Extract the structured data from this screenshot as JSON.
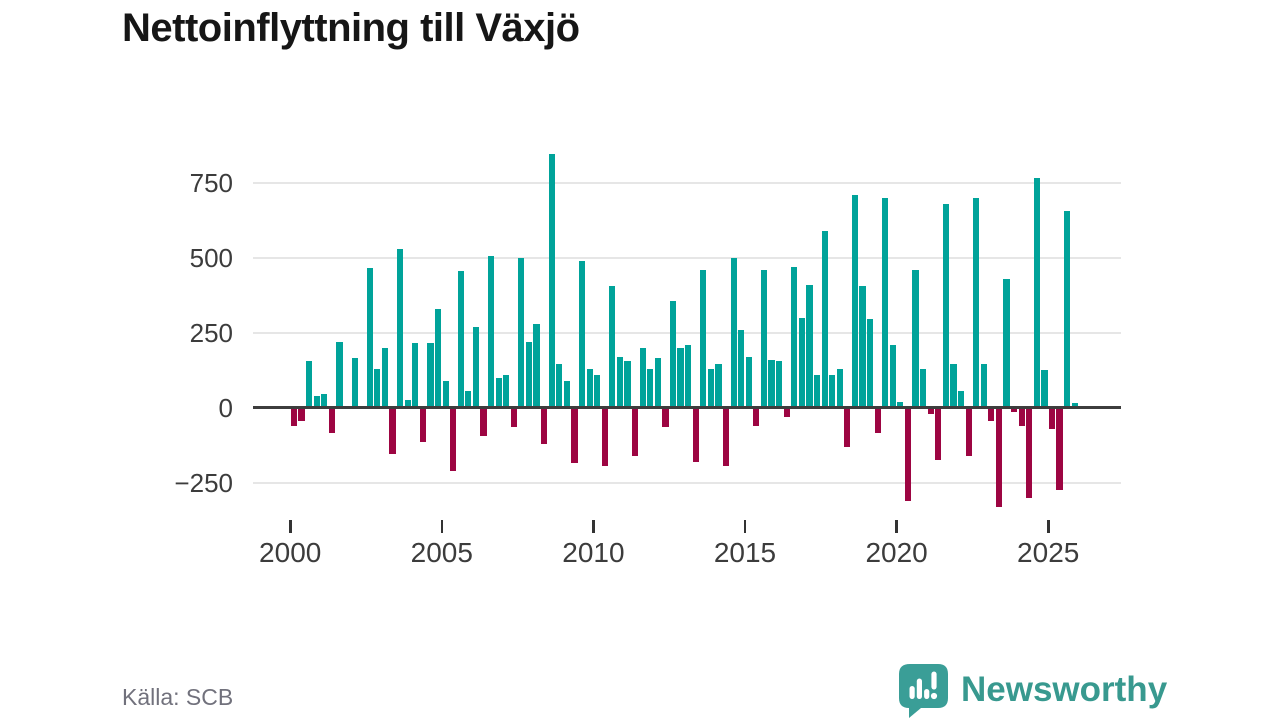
{
  "source": {
    "label": "Källa: SCB"
  },
  "brand": {
    "name": "Newsworthy",
    "color": "#38998f",
    "icon": "newsworthy-speech-bubble-chart-icon"
  },
  "chart_data": {
    "type": "bar",
    "title": "Nettoinflyttning till Växjö",
    "frequency": "quarterly",
    "start_year": 2000,
    "start_quarter": 1,
    "x_tick_labels": [
      "2000",
      "2005",
      "2010",
      "2015",
      "2020",
      "2025"
    ],
    "y_ticks": [
      750,
      500,
      250,
      0,
      -250
    ],
    "ylim": [
      -350,
      870
    ],
    "grid": "horizontal",
    "legend": "none",
    "positive_color": "#00a39a",
    "negative_color": "#9d0542",
    "axis_color": "#3d3d3d",
    "gridline_color": "#e6e6e6",
    "values": [
      -60,
      -45,
      155,
      40,
      45,
      -85,
      220,
      5,
      165,
      5,
      465,
      130,
      200,
      -155,
      530,
      25,
      215,
      -115,
      215,
      330,
      90,
      -210,
      455,
      55,
      270,
      -95,
      505,
      100,
      110,
      -65,
      500,
      220,
      280,
      -120,
      845,
      145,
      90,
      -185,
      490,
      130,
      110,
      -195,
      405,
      170,
      155,
      -160,
      200,
      130,
      165,
      -65,
      355,
      200,
      210,
      -180,
      460,
      130,
      145,
      -195,
      500,
      260,
      170,
      -60,
      460,
      160,
      155,
      -30,
      470,
      300,
      410,
      110,
      590,
      110,
      130,
      -130,
      710,
      405,
      295,
      -85,
      700,
      210,
      20,
      -310,
      460,
      130,
      -20,
      -175,
      680,
      145,
      55,
      -160,
      700,
      145,
      -45,
      -330,
      430,
      -15,
      -60,
      -300,
      765,
      125,
      -70,
      -275,
      655,
      15
    ]
  }
}
